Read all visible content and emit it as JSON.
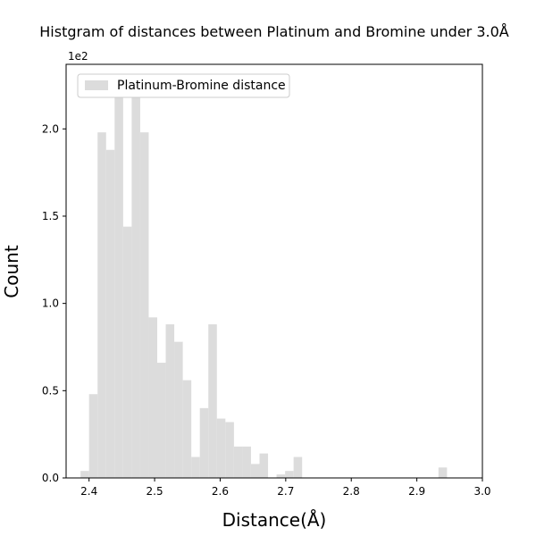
{
  "chart_data": {
    "type": "bar",
    "title": "Histgram of distances between Platinum and Bromine under 3.0Å",
    "xlabel": "Distance(Å)",
    "ylabel": "Count",
    "offset_label": "1e2",
    "xlim": [
      2.365,
      3.0
    ],
    "ylim": [
      0,
      237
    ],
    "xticks": [
      2.4,
      2.5,
      2.6,
      2.7,
      2.8,
      2.9,
      3.0
    ],
    "xtick_labels": [
      "2.4",
      "2.5",
      "2.6",
      "2.7",
      "2.8",
      "2.9",
      "3.0"
    ],
    "yticks": [
      0,
      50,
      100,
      150,
      200
    ],
    "ytick_labels": [
      "0.0",
      "0.5",
      "1.0",
      "1.5",
      "2.0"
    ],
    "legend_position": "top-left",
    "grid": false,
    "bar_color": "#dcdcdc",
    "series": [
      {
        "name": "Platinum-Bromine distance",
        "bins": [
          {
            "x0": 2.387,
            "x1": 2.4,
            "count": 4
          },
          {
            "x0": 2.4,
            "x1": 2.413,
            "count": 48
          },
          {
            "x0": 2.413,
            "x1": 2.426,
            "count": 198
          },
          {
            "x0": 2.426,
            "x1": 2.439,
            "count": 188
          },
          {
            "x0": 2.439,
            "x1": 2.452,
            "count": 218
          },
          {
            "x0": 2.452,
            "x1": 2.465,
            "count": 144
          },
          {
            "x0": 2.465,
            "x1": 2.478,
            "count": 224
          },
          {
            "x0": 2.478,
            "x1": 2.491,
            "count": 198
          },
          {
            "x0": 2.491,
            "x1": 2.504,
            "count": 92
          },
          {
            "x0": 2.504,
            "x1": 2.517,
            "count": 66
          },
          {
            "x0": 2.517,
            "x1": 2.53,
            "count": 88
          },
          {
            "x0": 2.53,
            "x1": 2.543,
            "count": 78
          },
          {
            "x0": 2.543,
            "x1": 2.556,
            "count": 56
          },
          {
            "x0": 2.556,
            "x1": 2.569,
            "count": 12
          },
          {
            "x0": 2.569,
            "x1": 2.582,
            "count": 40
          },
          {
            "x0": 2.582,
            "x1": 2.595,
            "count": 88
          },
          {
            "x0": 2.595,
            "x1": 2.608,
            "count": 34
          },
          {
            "x0": 2.608,
            "x1": 2.621,
            "count": 32
          },
          {
            "x0": 2.621,
            "x1": 2.634,
            "count": 18
          },
          {
            "x0": 2.634,
            "x1": 2.647,
            "count": 18
          },
          {
            "x0": 2.647,
            "x1": 2.66,
            "count": 8
          },
          {
            "x0": 2.66,
            "x1": 2.673,
            "count": 14
          },
          {
            "x0": 2.673,
            "x1": 2.686,
            "count": 0
          },
          {
            "x0": 2.686,
            "x1": 2.699,
            "count": 2
          },
          {
            "x0": 2.699,
            "x1": 2.712,
            "count": 4
          },
          {
            "x0": 2.712,
            "x1": 2.725,
            "count": 12
          },
          {
            "x0": 2.933,
            "x1": 2.946,
            "count": 6
          }
        ]
      }
    ]
  }
}
